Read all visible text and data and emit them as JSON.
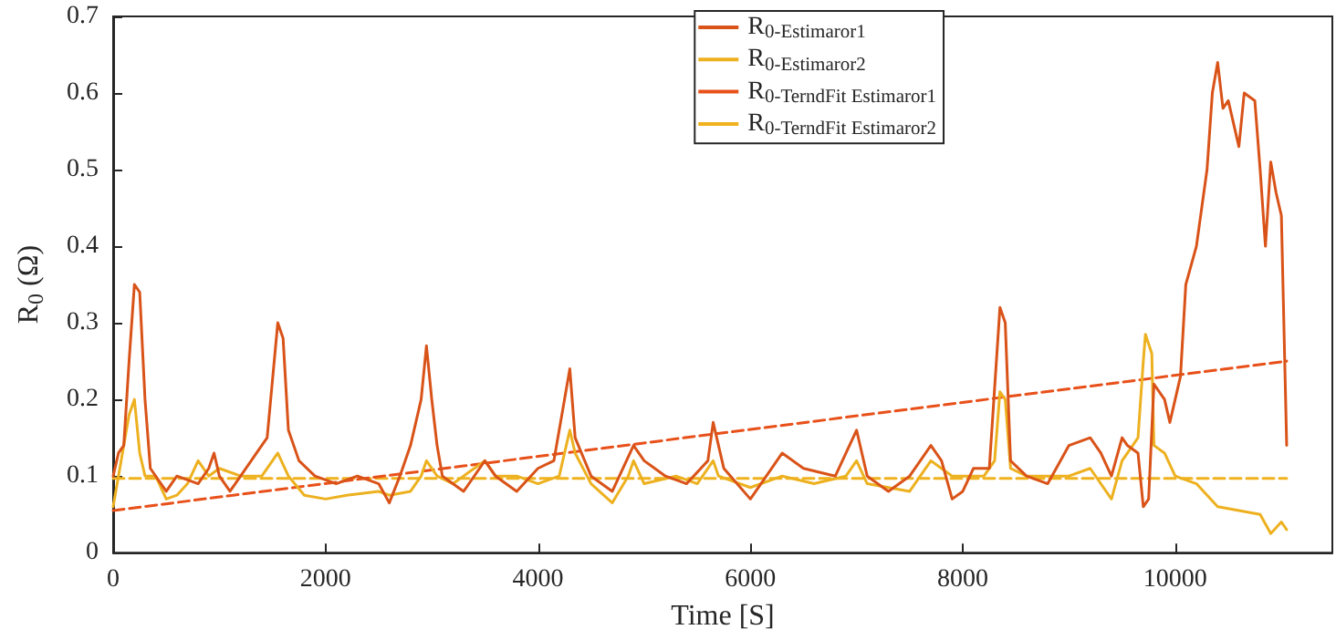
{
  "chart_data": {
    "type": "line",
    "xlabel": "Time [S]",
    "ylabel": "R$_{0}$ (Ω)",
    "xlim": [
      0,
      11480
    ],
    "xticks": [
      0,
      2000,
      4000,
      6000,
      8000,
      10000
    ],
    "ylim": [
      0,
      0.7
    ],
    "yticks": [
      0,
      0.1,
      0.2,
      0.3,
      0.4,
      0.5,
      0.6,
      0.7
    ],
    "grid": false,
    "legend": "top",
    "marker": "none",
    "series": [
      {
        "name": "R$_{0-Estimaror1}$",
        "color": "#d95319",
        "line_style": "solid",
        "x": [
          0,
          50,
          100,
          150,
          200,
          250,
          300,
          350,
          500,
          600,
          800,
          900,
          950,
          1000,
          1100,
          1200,
          1350,
          1450,
          1550,
          1600,
          1650,
          1750,
          1900,
          2100,
          2300,
          2500,
          2600,
          2700,
          2800,
          2900,
          2950,
          3000,
          3050,
          3100,
          3300,
          3500,
          3600,
          3800,
          4000,
          4150,
          4250,
          4300,
          4350,
          4500,
          4700,
          4900,
          5000,
          5200,
          5400,
          5600,
          5650,
          5750,
          6000,
          6100,
          6300,
          6500,
          6800,
          7000,
          7100,
          7300,
          7500,
          7700,
          7800,
          7900,
          8000,
          8100,
          8250,
          8350,
          8400,
          8450,
          8600,
          8800,
          9000,
          9200,
          9300,
          9400,
          9500,
          9550,
          9650,
          9700,
          9750,
          9800,
          9900,
          9950,
          10050,
          10100,
          10200,
          10300,
          10350,
          10400,
          10450,
          10500,
          10600,
          10650,
          10750,
          10800,
          10850,
          10900,
          10950,
          11000,
          11050
        ],
        "values": [
          0.1,
          0.13,
          0.14,
          0.25,
          0.35,
          0.34,
          0.2,
          0.11,
          0.08,
          0.1,
          0.09,
          0.11,
          0.13,
          0.1,
          0.08,
          0.1,
          0.13,
          0.15,
          0.3,
          0.28,
          0.16,
          0.12,
          0.1,
          0.09,
          0.1,
          0.09,
          0.065,
          0.1,
          0.14,
          0.2,
          0.27,
          0.2,
          0.14,
          0.1,
          0.08,
          0.12,
          0.1,
          0.08,
          0.11,
          0.12,
          0.2,
          0.24,
          0.15,
          0.1,
          0.08,
          0.14,
          0.12,
          0.1,
          0.09,
          0.12,
          0.17,
          0.11,
          0.07,
          0.09,
          0.13,
          0.11,
          0.1,
          0.16,
          0.1,
          0.08,
          0.1,
          0.14,
          0.12,
          0.07,
          0.08,
          0.11,
          0.11,
          0.32,
          0.3,
          0.12,
          0.1,
          0.09,
          0.14,
          0.15,
          0.13,
          0.1,
          0.15,
          0.14,
          0.13,
          0.06,
          0.07,
          0.22,
          0.2,
          0.17,
          0.23,
          0.35,
          0.4,
          0.5,
          0.6,
          0.64,
          0.58,
          0.59,
          0.53,
          0.6,
          0.59,
          0.5,
          0.4,
          0.51,
          0.47,
          0.44,
          0.14
        ]
      },
      {
        "name": "R$_{0-Estimaror2}$",
        "color": "#edb120",
        "line_style": "solid",
        "x": [
          0,
          50,
          100,
          150,
          200,
          250,
          300,
          400,
          500,
          600,
          700,
          800,
          900,
          1000,
          1200,
          1400,
          1500,
          1550,
          1650,
          1800,
          2000,
          2200,
          2500,
          2600,
          2800,
          2900,
          2950,
          3050,
          3200,
          3500,
          3600,
          3800,
          4000,
          4200,
          4300,
          4350,
          4500,
          4700,
          4850,
          4900,
          5000,
          5300,
          5500,
          5650,
          5700,
          6000,
          6300,
          6600,
          6900,
          7000,
          7100,
          7300,
          7500,
          7700,
          7900,
          8100,
          8200,
          8300,
          8350,
          8400,
          8450,
          8600,
          9000,
          9200,
          9400,
          9500,
          9600,
          9650,
          9700,
          9720,
          9780,
          9800,
          9900,
          10000,
          10200,
          10400,
          10600,
          10800,
          10900,
          11000,
          11050
        ],
        "values": [
          0.06,
          0.1,
          0.14,
          0.18,
          0.2,
          0.13,
          0.1,
          0.1,
          0.07,
          0.075,
          0.09,
          0.12,
          0.1,
          0.11,
          0.1,
          0.1,
          0.12,
          0.13,
          0.1,
          0.075,
          0.07,
          0.075,
          0.08,
          0.075,
          0.08,
          0.1,
          0.12,
          0.1,
          0.09,
          0.12,
          0.1,
          0.1,
          0.09,
          0.1,
          0.16,
          0.13,
          0.09,
          0.065,
          0.1,
          0.12,
          0.09,
          0.1,
          0.09,
          0.12,
          0.1,
          0.085,
          0.1,
          0.09,
          0.1,
          0.12,
          0.09,
          0.085,
          0.08,
          0.12,
          0.1,
          0.1,
          0.1,
          0.12,
          0.21,
          0.2,
          0.11,
          0.1,
          0.1,
          0.11,
          0.07,
          0.12,
          0.14,
          0.15,
          0.25,
          0.285,
          0.26,
          0.14,
          0.13,
          0.1,
          0.09,
          0.06,
          0.055,
          0.05,
          0.025,
          0.04,
          0.03
        ]
      },
      {
        "name": "R$_{0-TerndFit Estimaror1}$",
        "color": "#e8501a",
        "line_style": "dashed",
        "x": [
          0,
          11050
        ],
        "values": [
          0.055,
          0.25
        ]
      },
      {
        "name": "R$_{0-TerndFit Estimaror2}$",
        "color": "#f0b21e",
        "line_style": "dashed",
        "x": [
          0,
          11050
        ],
        "values": [
          0.097,
          0.097
        ]
      }
    ]
  }
}
